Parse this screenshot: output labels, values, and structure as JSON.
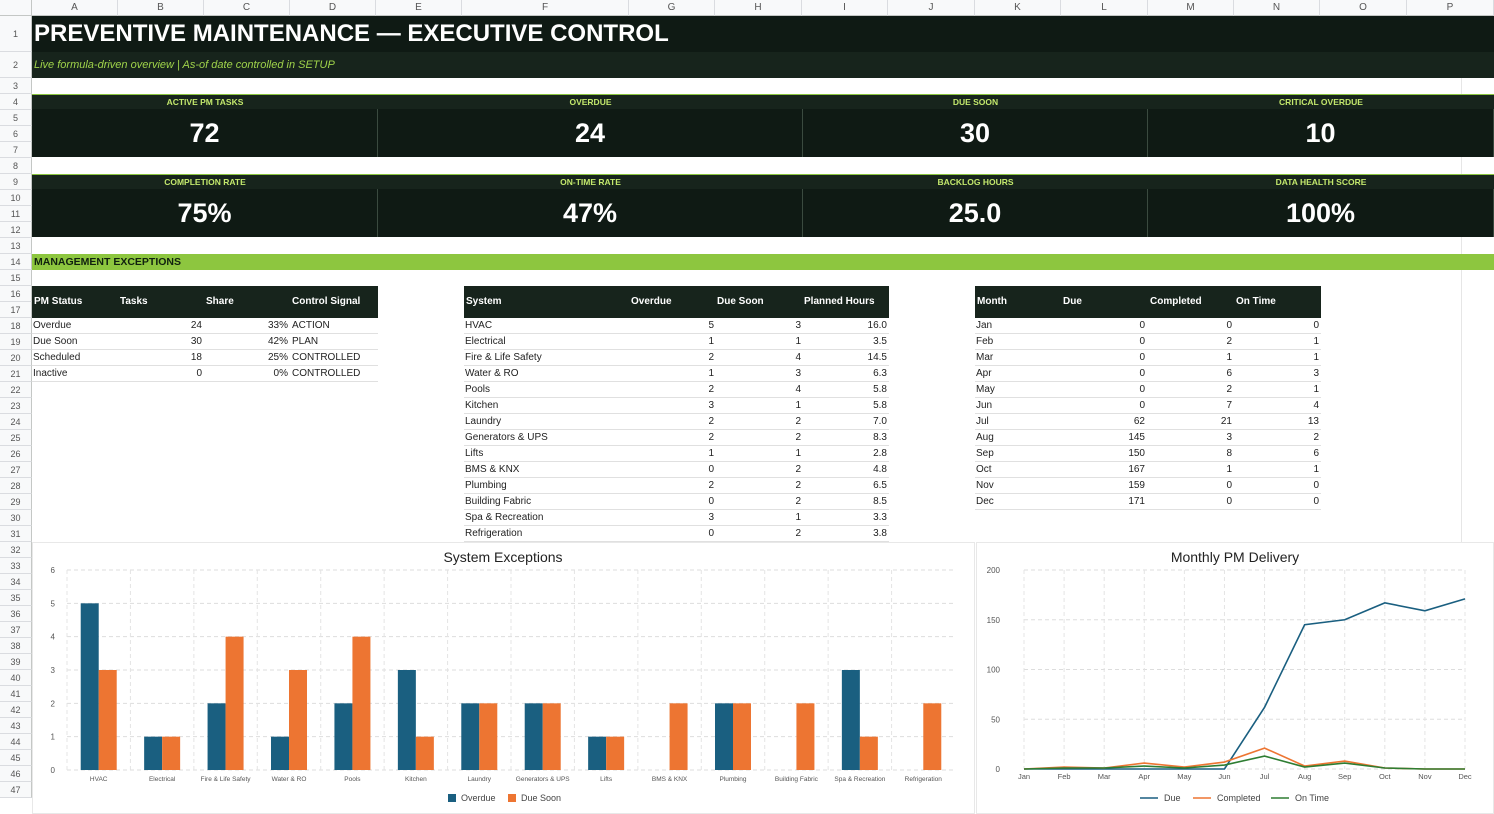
{
  "columns": [
    "A",
    "B",
    "C",
    "D",
    "E",
    "F",
    "G",
    "H",
    "I",
    "J",
    "K",
    "L",
    "M",
    "N",
    "O",
    "P"
  ],
  "rows": [
    "1",
    "2",
    "3",
    "4",
    "5",
    "6",
    "7",
    "8",
    "9",
    "10",
    "11",
    "12",
    "13",
    "14",
    "15",
    "16",
    "17",
    "18",
    "19",
    "20",
    "21",
    "22",
    "23",
    "24",
    "25",
    "26",
    "27",
    "28",
    "29",
    "30",
    "31",
    "32",
    "33",
    "34",
    "35",
    "36",
    "37",
    "38",
    "39",
    "40",
    "41",
    "42",
    "43",
    "44",
    "45",
    "46",
    "47"
  ],
  "title": "PREVENTIVE MAINTENANCE — EXECUTIVE CONTROL",
  "subtitle": "Live formula-driven overview | As-of date controlled in SETUP",
  "kpis_row1": [
    {
      "label": "ACTIVE PM TASKS",
      "value": "72"
    },
    {
      "label": "OVERDUE",
      "value": "24"
    },
    {
      "label": "DUE SOON",
      "value": "30"
    },
    {
      "label": "CRITICAL OVERDUE",
      "value": "10"
    }
  ],
  "kpis_row2": [
    {
      "label": "COMPLETION RATE",
      "value": "75%"
    },
    {
      "label": "ON-TIME RATE",
      "value": "47%"
    },
    {
      "label": "BACKLOG HOURS",
      "value": "25.0"
    },
    {
      "label": "DATA HEALTH SCORE",
      "value": "100%"
    }
  ],
  "section_title": "MANAGEMENT EXCEPTIONS",
  "status_table": {
    "headers": [
      "PM Status",
      "Tasks",
      "Share",
      "Control Signal"
    ],
    "rows": [
      [
        "Overdue",
        "24",
        "33%",
        "ACTION"
      ],
      [
        "Due Soon",
        "30",
        "42%",
        "PLAN"
      ],
      [
        "Scheduled",
        "18",
        "25%",
        "CONTROLLED"
      ],
      [
        "Inactive",
        "0",
        "0%",
        "CONTROLLED"
      ]
    ]
  },
  "system_table": {
    "headers": [
      "System",
      "Overdue",
      "Due Soon",
      "Planned Hours"
    ],
    "rows": [
      [
        "HVAC",
        "5",
        "3",
        "16.0"
      ],
      [
        "Electrical",
        "1",
        "1",
        "3.5"
      ],
      [
        "Fire & Life Safety",
        "2",
        "4",
        "14.5"
      ],
      [
        "Water & RO",
        "1",
        "3",
        "6.3"
      ],
      [
        "Pools",
        "2",
        "4",
        "5.8"
      ],
      [
        "Kitchen",
        "3",
        "1",
        "5.8"
      ],
      [
        "Laundry",
        "2",
        "2",
        "7.0"
      ],
      [
        "Generators & UPS",
        "2",
        "2",
        "8.3"
      ],
      [
        "Lifts",
        "1",
        "1",
        "2.8"
      ],
      [
        "BMS & KNX",
        "0",
        "2",
        "4.8"
      ],
      [
        "Plumbing",
        "2",
        "2",
        "6.5"
      ],
      [
        "Building Fabric",
        "0",
        "2",
        "8.5"
      ],
      [
        "Spa & Recreation",
        "3",
        "1",
        "3.3"
      ],
      [
        "Refrigeration",
        "0",
        "2",
        "3.8"
      ]
    ]
  },
  "month_table": {
    "headers": [
      "Month",
      "Due",
      "Completed",
      "On Time"
    ],
    "rows": [
      [
        "Jan",
        "0",
        "0",
        "0"
      ],
      [
        "Feb",
        "0",
        "2",
        "1"
      ],
      [
        "Mar",
        "0",
        "1",
        "1"
      ],
      [
        "Apr",
        "0",
        "6",
        "3"
      ],
      [
        "May",
        "0",
        "2",
        "1"
      ],
      [
        "Jun",
        "0",
        "7",
        "4"
      ],
      [
        "Jul",
        "62",
        "21",
        "13"
      ],
      [
        "Aug",
        "145",
        "3",
        "2"
      ],
      [
        "Sep",
        "150",
        "8",
        "6"
      ],
      [
        "Oct",
        "167",
        "1",
        "1"
      ],
      [
        "Nov",
        "159",
        "0",
        "0"
      ],
      [
        "Dec",
        "171",
        "0",
        "0"
      ]
    ]
  },
  "colors": {
    "dark": "#0f1a14",
    "accent_green": "#8dc63f",
    "series_blue": "#1a5f80",
    "series_orange": "#ed7532",
    "series_green": "#2e7d32"
  },
  "chart_data": [
    {
      "type": "bar",
      "title": "System Exceptions",
      "categories": [
        "HVAC",
        "Electrical",
        "Fire & Life Safety",
        "Water & RO",
        "Pools",
        "Kitchen",
        "Laundry",
        "Generators & UPS",
        "Lifts",
        "BMS & KNX",
        "Plumbing",
        "Building Fabric",
        "Spa & Recreation",
        "Refrigeration"
      ],
      "series": [
        {
          "name": "Overdue",
          "values": [
            5,
            1,
            2,
            1,
            2,
            3,
            2,
            2,
            1,
            0,
            2,
            0,
            3,
            0
          ]
        },
        {
          "name": "Due Soon",
          "values": [
            3,
            1,
            4,
            3,
            4,
            1,
            2,
            2,
            1,
            2,
            2,
            2,
            1,
            2
          ]
        }
      ],
      "yticks": [
        "0",
        "1",
        "2",
        "3",
        "4",
        "5",
        "6"
      ],
      "ylim": [
        0,
        6
      ],
      "grid": true,
      "legend": "bottom"
    },
    {
      "type": "line",
      "title": "Monthly PM Delivery",
      "categories": [
        "Jan",
        "Feb",
        "Mar",
        "Apr",
        "May",
        "Jun",
        "Jul",
        "Aug",
        "Sep",
        "Oct",
        "Nov",
        "Dec"
      ],
      "series": [
        {
          "name": "Due",
          "values": [
            0,
            0,
            0,
            0,
            0,
            0,
            62,
            145,
            150,
            167,
            159,
            171
          ]
        },
        {
          "name": "Completed",
          "values": [
            0,
            2,
            1,
            6,
            2,
            7,
            21,
            3,
            8,
            1,
            0,
            0
          ]
        },
        {
          "name": "On Time",
          "values": [
            0,
            1,
            1,
            3,
            1,
            4,
            13,
            2,
            6,
            1,
            0,
            0
          ]
        }
      ],
      "yticks": [
        "0",
        "50",
        "100",
        "150",
        "200"
      ],
      "ylim": [
        0,
        200
      ],
      "grid": true,
      "legend": "bottom"
    }
  ]
}
